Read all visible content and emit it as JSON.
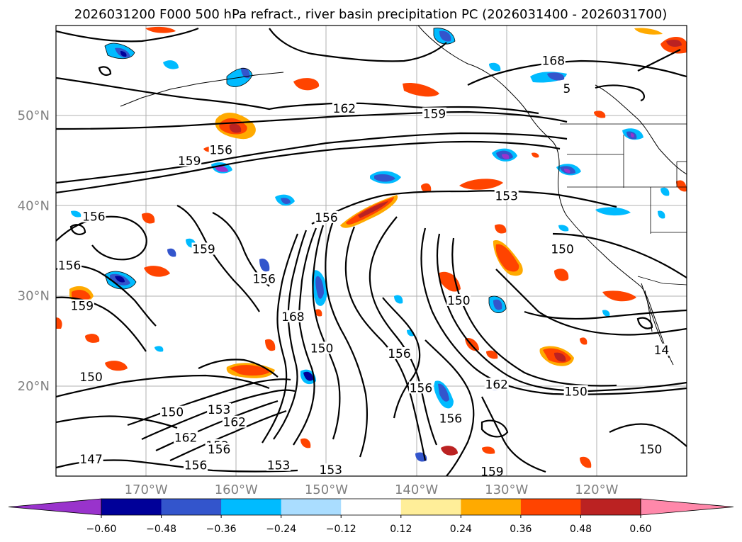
{
  "title": "2026031200 F000 500 hPa refract., river basin precipitation PC (2026031400 - 2026031700)",
  "map": {
    "lon_range": [
      -180,
      -110
    ],
    "lat_range": [
      10,
      60
    ],
    "lon_ticks": [
      {
        "lon": -170,
        "label": "170°W"
      },
      {
        "lon": -160,
        "label": "160°W"
      },
      {
        "lon": -150,
        "label": "150°W"
      },
      {
        "lon": -140,
        "label": "140°W"
      },
      {
        "lon": -130,
        "label": "130°W"
      },
      {
        "lon": -120,
        "label": "120°W"
      }
    ],
    "lat_ticks": [
      {
        "lat": 50,
        "label": "50°N"
      },
      {
        "lat": 40,
        "label": "40°N"
      },
      {
        "lat": 30,
        "label": "30°N"
      },
      {
        "lat": 20,
        "label": "20°N"
      }
    ],
    "grid": true,
    "contour_labels": [
      {
        "text": "168",
        "lon": -124.8,
        "lat": 56.1
      },
      {
        "text": "162",
        "lon": -148.0,
        "lat": 50.8
      },
      {
        "text": "159",
        "lon": -138.0,
        "lat": 50.2
      },
      {
        "text": "156",
        "lon": -161.7,
        "lat": 46.2
      },
      {
        "text": "159",
        "lon": -165.2,
        "lat": 45.0
      },
      {
        "text": "153",
        "lon": -130.0,
        "lat": 41.1
      },
      {
        "text": "156",
        "lon": -175.8,
        "lat": 38.8
      },
      {
        "text": "156",
        "lon": -150.0,
        "lat": 38.7
      },
      {
        "text": "159",
        "lon": -163.6,
        "lat": 35.2
      },
      {
        "text": "156",
        "lon": -178.5,
        "lat": 33.4
      },
      {
        "text": "150",
        "lon": -123.8,
        "lat": 35.2
      },
      {
        "text": "156",
        "lon": -156.9,
        "lat": 31.9
      },
      {
        "text": "159",
        "lon": -177.1,
        "lat": 28.9
      },
      {
        "text": "150",
        "lon": -135.3,
        "lat": 29.5
      },
      {
        "text": "168",
        "lon": -153.7,
        "lat": 27.7
      },
      {
        "text": "150",
        "lon": -150.5,
        "lat": 24.2
      },
      {
        "text": "156",
        "lon": -141.9,
        "lat": 23.6
      },
      {
        "text": "14",
        "lon": -112.8,
        "lat": 24.0
      },
      {
        "text": "150",
        "lon": -176.1,
        "lat": 21.0
      },
      {
        "text": "150",
        "lon": -122.3,
        "lat": 19.4
      },
      {
        "text": "156",
        "lon": -139.5,
        "lat": 19.8
      },
      {
        "text": "162",
        "lon": -131.1,
        "lat": 20.2
      },
      {
        "text": "150",
        "lon": -167.1,
        "lat": 17.1
      },
      {
        "text": "153",
        "lon": -161.9,
        "lat": 17.4
      },
      {
        "text": "162",
        "lon": -160.2,
        "lat": 16.0
      },
      {
        "text": "162",
        "lon": -165.6,
        "lat": 14.3
      },
      {
        "text": "156",
        "lon": -136.2,
        "lat": 16.4
      },
      {
        "text": "153",
        "lon": -162.1,
        "lat": 13.4
      },
      {
        "text": "156",
        "lon": -161.9,
        "lat": 13.0
      },
      {
        "text": "147",
        "lon": -176.1,
        "lat": 11.9
      },
      {
        "text": "156",
        "lon": -164.5,
        "lat": 11.2
      },
      {
        "text": "153",
        "lon": -155.3,
        "lat": 11.2
      },
      {
        "text": "153",
        "lon": -149.5,
        "lat": 10.7
      },
      {
        "text": "159",
        "lon": -131.6,
        "lat": 10.5
      },
      {
        "text": "150",
        "lon": -114.0,
        "lat": 13.0
      },
      {
        "text": "5",
        "lon": -123.3,
        "lat": 53.0
      }
    ]
  },
  "colorbar": {
    "colors": [
      "#9933cc",
      "#000099",
      "#3355cc",
      "#00bbff",
      "#aaddff",
      "#ffffff",
      "#ffee99",
      "#ffaa00",
      "#ff4400",
      "#bb2222",
      "#ff88aa"
    ],
    "tick_labels": [
      "−0.60",
      "−0.48",
      "−0.36",
      "−0.24",
      "−0.12",
      "0.12",
      "0.24",
      "0.36",
      "0.48",
      "0.60"
    ],
    "extend": "both"
  }
}
